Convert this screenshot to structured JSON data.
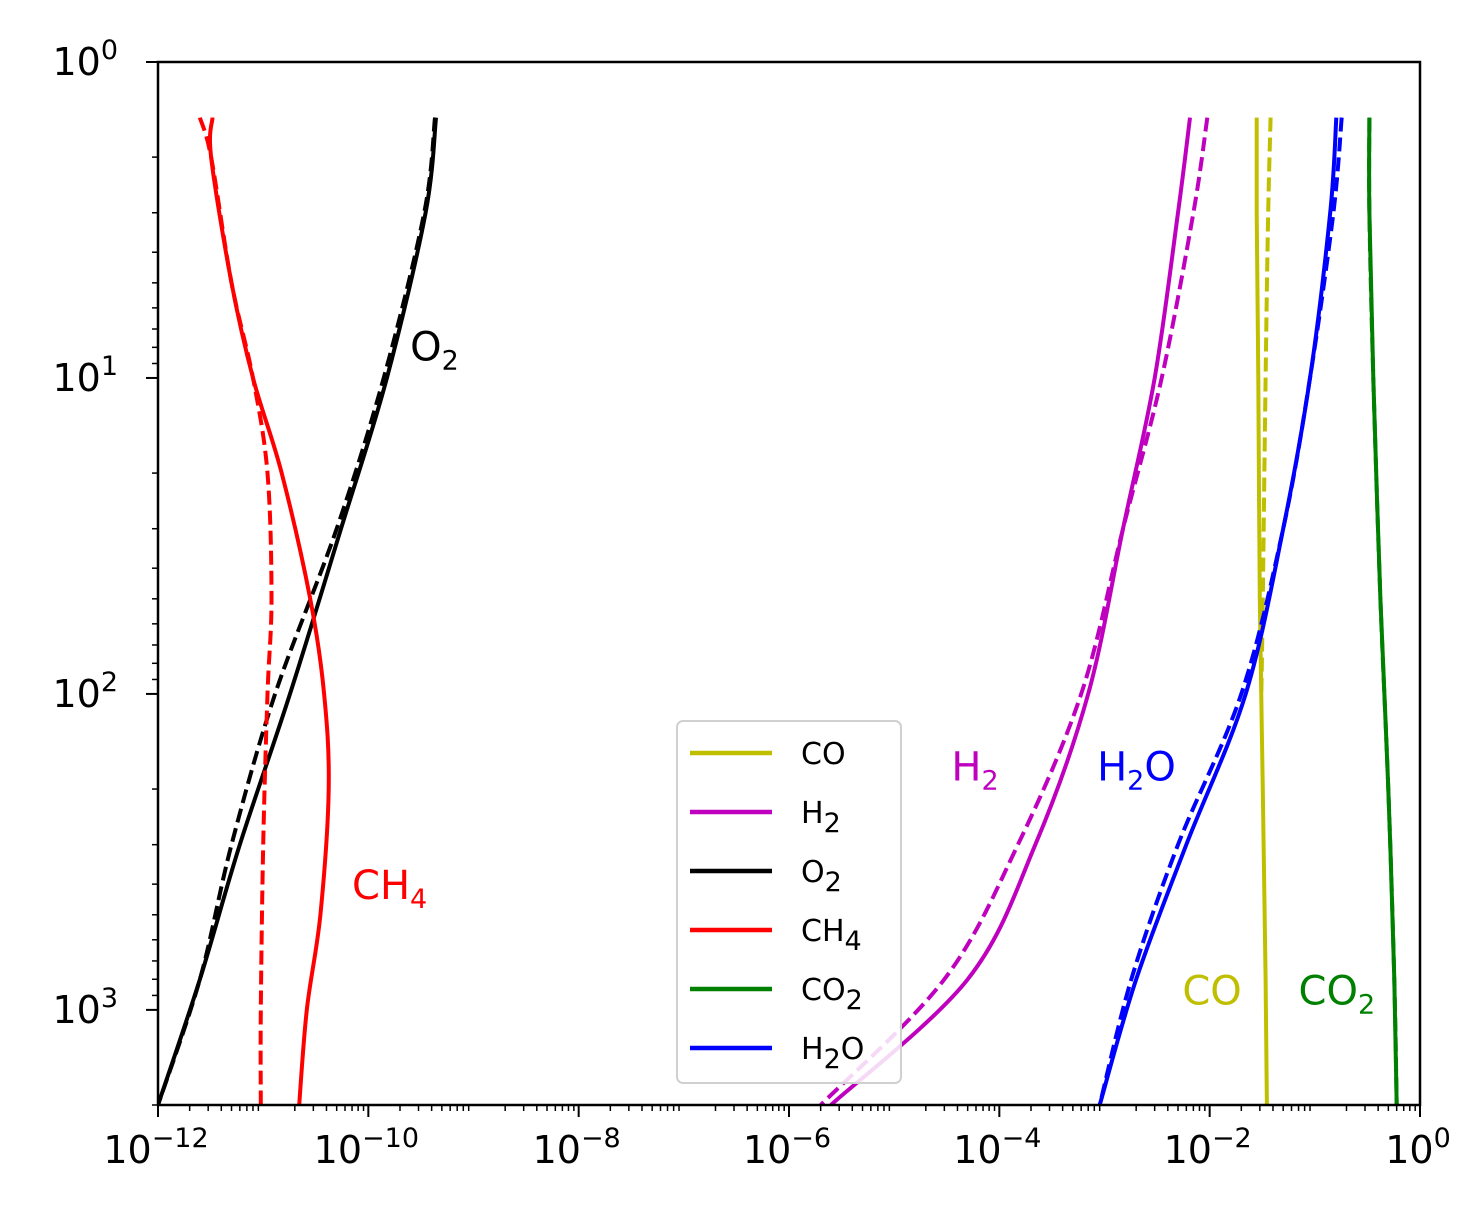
{
  "chart_data": {
    "type": "line",
    "title": "",
    "xlabel": "",
    "ylabel": "",
    "xscale": "log",
    "yscale": "log",
    "y_inverted": true,
    "xlim": [
      1e-12,
      1
    ],
    "ylim": [
      2000,
      1
    ],
    "x_ticks": [
      {
        "base": "10",
        "exp": "−12"
      },
      {
        "base": "10",
        "exp": "−10"
      },
      {
        "base": "10",
        "exp": "−8"
      },
      {
        "base": "10",
        "exp": "−6"
      },
      {
        "base": "10",
        "exp": "−4"
      },
      {
        "base": "10",
        "exp": "−2"
      },
      {
        "base": "10",
        "exp": "0"
      }
    ],
    "y_ticks": [
      {
        "base": "10",
        "exp": "0"
      },
      {
        "base": "10",
        "exp": "1"
      },
      {
        "base": "10",
        "exp": "2"
      },
      {
        "base": "10",
        "exp": "3"
      }
    ],
    "legend": {
      "placement": "lower-center",
      "entries": [
        {
          "name": "CO",
          "sub": "",
          "color": "#bfbf00"
        },
        {
          "name": "H",
          "sub": "2",
          "color": "#bf00bf"
        },
        {
          "name": "O",
          "sub": "2",
          "color": "#000000"
        },
        {
          "name": "CH",
          "sub": "4",
          "color": "#ff0000"
        },
        {
          "name": "CO",
          "sub": "2",
          "color": "#008000"
        },
        {
          "name": "H",
          "sub": "2",
          "sub_after": "O",
          "color": "#0000ff"
        }
      ]
    },
    "series": [
      {
        "name": "CO",
        "color": "#bfbf00",
        "style": "solid",
        "points": [
          [
            0.028,
            1.5
          ],
          [
            0.028,
            3
          ],
          [
            0.029,
            10
          ],
          [
            0.03,
            50
          ],
          [
            0.032,
            200
          ],
          [
            0.034,
            800
          ],
          [
            0.035,
            2000
          ]
        ]
      },
      {
        "name": "CO",
        "color": "#bfbf00",
        "style": "dashed",
        "points": [
          [
            0.038,
            1.5
          ],
          [
            0.036,
            3
          ],
          [
            0.034,
            10
          ],
          [
            0.032,
            50
          ],
          [
            0.031,
            100
          ]
        ]
      },
      {
        "name": "H2",
        "color": "#bf00bf",
        "style": "solid",
        "points": [
          [
            0.0065,
            1.5
          ],
          [
            0.005,
            3
          ],
          [
            0.003,
            10
          ],
          [
            0.0015,
            30
          ],
          [
            0.0007,
            100
          ],
          [
            0.00022,
            300
          ],
          [
            5e-05,
            800
          ],
          [
            2.5e-06,
            2000
          ]
        ]
      },
      {
        "name": "H2",
        "color": "#bf00bf",
        "style": "dashed",
        "points": [
          [
            0.0095,
            1.5
          ],
          [
            0.007,
            3
          ],
          [
            0.0035,
            10
          ],
          [
            0.0015,
            30
          ],
          [
            0.0006,
            100
          ],
          [
            0.00015,
            300
          ],
          [
            3e-05,
            800
          ],
          [
            2e-06,
            2000
          ]
        ]
      },
      {
        "name": "O2",
        "color": "#000000",
        "style": "solid",
        "points": [
          [
            4.4e-10,
            1.5
          ],
          [
            3.5e-10,
            3
          ],
          [
            1.5e-10,
            10
          ],
          [
            5.5e-11,
            30
          ],
          [
            1.8e-11,
            100
          ],
          [
            6e-12,
            300
          ],
          [
            2.5e-12,
            800
          ],
          [
            1e-12,
            2000
          ]
        ]
      },
      {
        "name": "O2",
        "color": "#000000",
        "style": "dashed",
        "points": [
          [
            4.3e-10,
            1.5
          ],
          [
            3.4e-10,
            3
          ],
          [
            1.4e-10,
            10
          ],
          [
            5e-11,
            30
          ],
          [
            1.3e-11,
            100
          ],
          [
            5e-12,
            300
          ],
          [
            2.5e-12,
            800
          ],
          [
            1e-12,
            2000
          ]
        ]
      },
      {
        "name": "CH4",
        "color": "#ff0000",
        "style": "solid",
        "points": [
          [
            3.3e-12,
            1.5
          ],
          [
            3.2e-12,
            2
          ],
          [
            5e-12,
            5
          ],
          [
            8e-12,
            10
          ],
          [
            1.5e-11,
            20
          ],
          [
            2.8e-11,
            50
          ],
          [
            3.8e-11,
            100
          ],
          [
            4.2e-11,
            200
          ],
          [
            3.5e-11,
            500
          ],
          [
            2.6e-11,
            1000
          ],
          [
            2.2e-11,
            2000
          ]
        ]
      },
      {
        "name": "CH4",
        "color": "#ff0000",
        "style": "dashed",
        "points": [
          [
            2.5e-12,
            1.5
          ],
          [
            3.2e-12,
            2
          ],
          [
            5e-12,
            5
          ],
          [
            8e-12,
            10
          ],
          [
            1.1e-11,
            20
          ],
          [
            1.2e-11,
            50
          ],
          [
            1.1e-11,
            100
          ],
          [
            1e-11,
            300
          ],
          [
            9.5e-12,
            1000
          ],
          [
            9.5e-12,
            2000
          ]
        ]
      },
      {
        "name": "CO2",
        "color": "#008000",
        "style": "solid",
        "points": [
          [
            0.33,
            1.5
          ],
          [
            0.33,
            3
          ],
          [
            0.36,
            10
          ],
          [
            0.42,
            50
          ],
          [
            0.5,
            200
          ],
          [
            0.57,
            800
          ],
          [
            0.6,
            2000
          ]
        ]
      },
      {
        "name": "CO2",
        "color": "#008000",
        "style": "dashed",
        "points": [
          [
            0.33,
            1.5
          ],
          [
            0.33,
            3
          ],
          [
            0.36,
            10
          ],
          [
            0.42,
            50
          ],
          [
            0.5,
            200
          ],
          [
            0.57,
            800
          ],
          [
            0.6,
            2000
          ]
        ]
      },
      {
        "name": "H2O",
        "color": "#0000ff",
        "style": "solid",
        "points": [
          [
            0.16,
            1.5
          ],
          [
            0.14,
            3
          ],
          [
            0.09,
            10
          ],
          [
            0.05,
            30
          ],
          [
            0.022,
            100
          ],
          [
            0.006,
            300
          ],
          [
            0.002,
            800
          ],
          [
            0.0009,
            2000
          ]
        ]
      },
      {
        "name": "H2O",
        "color": "#0000ff",
        "style": "dashed",
        "points": [
          [
            0.18,
            1.5
          ],
          [
            0.15,
            3
          ],
          [
            0.09,
            10
          ],
          [
            0.05,
            30
          ],
          [
            0.02,
            100
          ],
          [
            0.005,
            300
          ],
          [
            0.0018,
            800
          ],
          [
            0.0009,
            2000
          ]
        ]
      }
    ],
    "annotations": [
      {
        "text": "O",
        "sub": "2",
        "color": "#000000",
        "x": 2.5e-10,
        "y": 8.8
      },
      {
        "text": "CH",
        "sub": "4",
        "color": "#ff0000",
        "x": 7e-11,
        "y": 445
      },
      {
        "text": "H",
        "sub": "2",
        "color": "#bf00bf",
        "x": 3.5e-05,
        "y": 188
      },
      {
        "text": "H",
        "sub": "2",
        "sub_after": "O",
        "color": "#0000ff",
        "x": 0.00085,
        "y": 188
      },
      {
        "text": "CO",
        "sub": "",
        "color": "#bfbf00",
        "x": 0.0055,
        "y": 960
      },
      {
        "text": "CO",
        "sub": "2",
        "color": "#008000",
        "x": 0.07,
        "y": 960
      }
    ]
  }
}
